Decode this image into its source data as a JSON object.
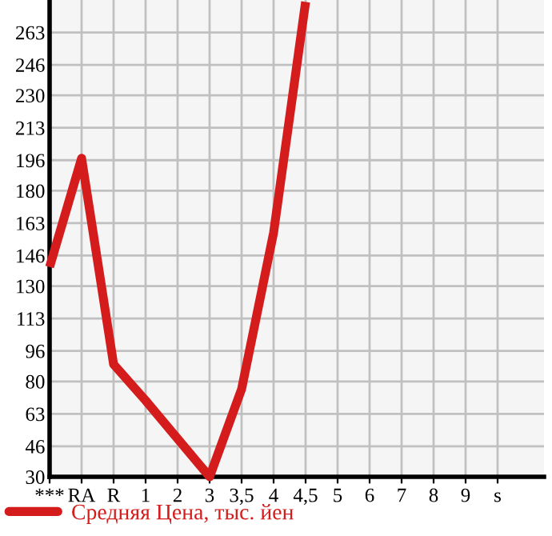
{
  "chart_data": {
    "type": "line",
    "categories": [
      "***",
      "RA",
      "R",
      "1",
      "2",
      "3",
      "3,5",
      "4",
      "4,5",
      "5",
      "6",
      "7",
      "8",
      "9",
      "s"
    ],
    "series": [
      {
        "name": "Средняя Цена, тыс. йен",
        "color": "#d41c1c",
        "values": [
          140,
          197,
          89,
          70,
          50,
          30,
          76,
          158,
          279,
          null,
          null,
          null,
          null,
          null,
          null
        ]
      }
    ],
    "ylim": [
      30,
      280
    ],
    "yticks": [
      30,
      46,
      63,
      80,
      96,
      113,
      130,
      146,
      163,
      180,
      196,
      213,
      230,
      246,
      263
    ],
    "grid": true,
    "legend": "bottom left",
    "marker": "none",
    "line_style": "solid"
  }
}
